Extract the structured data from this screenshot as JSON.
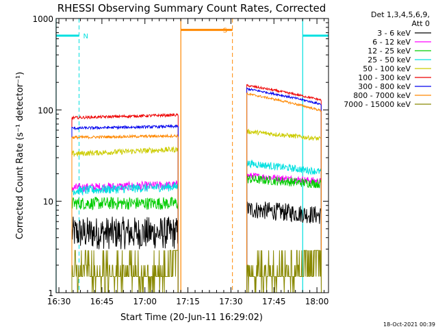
{
  "chart_data": {
    "type": "line",
    "title": "RHESSI Observing Summary Count Rates, Corrected",
    "xlabel": "Start Time (20-Jun-11 16:29:02)",
    "ylabel": "Corrected Count Rate (s⁻¹ detector⁻¹)",
    "ylog": true,
    "ylim": [
      1,
      1000
    ],
    "xlim_minutes": [
      0,
      95
    ],
    "x_tick_labels": [
      "16:30",
      "16:45",
      "17:00",
      "17:15",
      "17:30",
      "17:45",
      "18:00"
    ],
    "y_tick_labels": [
      "1",
      "10",
      "100",
      "1000"
    ],
    "legend": {
      "position": "right",
      "header": [
        "Det 1,3,4,5,6,9,",
        "Att 0"
      ]
    },
    "series": [
      {
        "name": "3 - 6 keV",
        "color": "#000000",
        "segments": [
          {
            "t": [
              5.5,
              42.5
            ],
            "v": [
              4.5,
              4.5
            ],
            "noise": 0.18
          },
          {
            "t": [
              66.5,
              92.5
            ],
            "v": [
              8.2,
              7.0
            ],
            "noise": 0.1
          }
        ]
      },
      {
        "name": "6 - 12 keV",
        "color": "#ff00ff",
        "segments": [
          {
            "t": [
              5.5,
              42.5
            ],
            "v": [
              14.0,
              15.0
            ],
            "noise": 0.05
          },
          {
            "t": [
              66.5,
              92.5
            ],
            "v": [
              19.0,
              16.5
            ],
            "noise": 0.04
          }
        ]
      },
      {
        "name": "12 - 25 keV",
        "color": "#00cc00",
        "segments": [
          {
            "t": [
              5.5,
              42.5
            ],
            "v": [
              9.5,
              9.5
            ],
            "noise": 0.07
          },
          {
            "t": [
              66.5,
              92.5
            ],
            "v": [
              17.5,
              15.5
            ],
            "noise": 0.05
          }
        ]
      },
      {
        "name": "25 - 50 keV",
        "color": "#00e0e0",
        "segments": [
          {
            "t": [
              5.5,
              42.5
            ],
            "v": [
              13.0,
              14.5
            ],
            "noise": 0.05
          },
          {
            "t": [
              66.5,
              92.5
            ],
            "v": [
              26.0,
              21.0
            ],
            "noise": 0.04
          }
        ]
      },
      {
        "name": "50 - 100 keV",
        "color": "#cccc00",
        "segments": [
          {
            "t": [
              5.5,
              42.5
            ],
            "v": [
              33.0,
              37.0
            ],
            "noise": 0.03
          },
          {
            "t": [
              66.5,
              92.5
            ],
            "v": [
              58.0,
              48.0
            ],
            "noise": 0.025
          }
        ]
      },
      {
        "name": "100 - 300 keV",
        "color": "#ee0000",
        "segments": [
          {
            "t": [
              5.5,
              42.5
            ],
            "v": [
              82.0,
              88.0
            ],
            "noise": 0.015
          },
          {
            "t": [
              66.5,
              92.5
            ],
            "v": [
              185.0,
              128.0
            ],
            "noise": 0.012
          }
        ]
      },
      {
        "name": "300 - 800 keV",
        "color": "#0000ee",
        "segments": [
          {
            "t": [
              5.5,
              42.5
            ],
            "v": [
              63.0,
              66.0
            ],
            "noise": 0.015
          },
          {
            "t": [
              66.5,
              92.5
            ],
            "v": [
              170.0,
              115.0
            ],
            "noise": 0.012
          }
        ]
      },
      {
        "name": "800 - 7000 keV",
        "color": "#ff8800",
        "segments": [
          {
            "t": [
              5.5,
              42.5
            ],
            "v": [
              50.0,
              52.0
            ],
            "noise": 0.015
          },
          {
            "t": [
              66.5,
              92.5
            ],
            "v": [
              150.0,
              98.0
            ],
            "noise": 0.012
          }
        ]
      },
      {
        "name": "7000 - 15000 keV",
        "color": "#888800",
        "segments": [
          {
            "t": [
              5.5,
              42.5
            ],
            "v": [
              1.5,
              1.5
            ],
            "noise": 0
          },
          {
            "t": [
              66.5,
              92.5
            ],
            "v": [
              1.5,
              1.5
            ],
            "noise": 0
          }
        ]
      }
    ],
    "markers": {
      "night": {
        "label": "N",
        "color": "#00e0e0",
        "intervals": [
          [
            0,
            8
          ],
          [
            86,
            95
          ]
        ],
        "level": 650,
        "boundaries_solid": [
          0,
          86
        ],
        "boundaries_dashed": [
          8,
          95
        ]
      },
      "saa": {
        "label": "S",
        "color": "#ff8800",
        "intervals": [
          [
            43.5,
            61.5
          ]
        ],
        "level": 750,
        "boundaries_solid": [
          43.5
        ],
        "boundaries_dashed": [
          61.5
        ]
      }
    }
  },
  "footer": {
    "timestamp": "18-Oct-2021 00:39"
  }
}
